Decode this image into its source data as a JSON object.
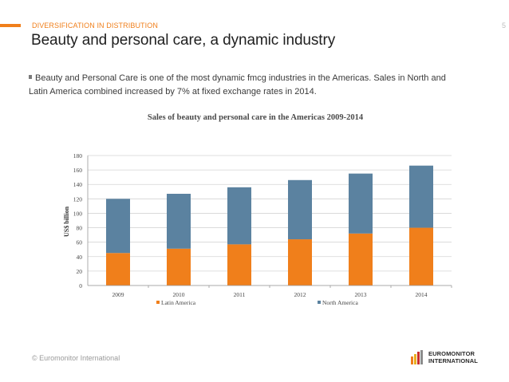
{
  "header": {
    "section_label": "DIVERSIFICATION IN DISTRIBUTION",
    "page_number": "5",
    "title": "Beauty and personal care, a dynamic industry"
  },
  "body": {
    "bullet_line_1": "Beauty and Personal Care is one of the most dynamic fmcg industries in the Americas. Sales in North and",
    "bullet_line_2": "Latin America combined increased by 7% at fixed exchange rates in 2014."
  },
  "chart_data": {
    "type": "bar",
    "stacked": true,
    "title": "Sales of beauty and personal care in the Americas 2009-2014",
    "xlabel": "",
    "ylabel": "US$ billion",
    "categories": [
      "2009",
      "2010",
      "2011",
      "2012",
      "2013",
      "2014"
    ],
    "series": [
      {
        "name": "Latin America",
        "color": "#f07f1b",
        "values": [
          45,
          51,
          57,
          64,
          72,
          80
        ]
      },
      {
        "name": "North America",
        "color": "#5b82a0",
        "values": [
          75,
          76,
          79,
          82,
          83,
          86
        ]
      }
    ],
    "ylim": [
      0,
      180
    ],
    "yticks": [
      "0",
      "20",
      "40",
      "60",
      "80",
      "100",
      "120",
      "140",
      "160",
      "180"
    ],
    "grid": true,
    "legend": "bottom"
  },
  "footer": {
    "copyright": "© Euromonitor International",
    "logo_line_1": "EUROMONITOR",
    "logo_line_2": "INTERNATIONAL"
  }
}
